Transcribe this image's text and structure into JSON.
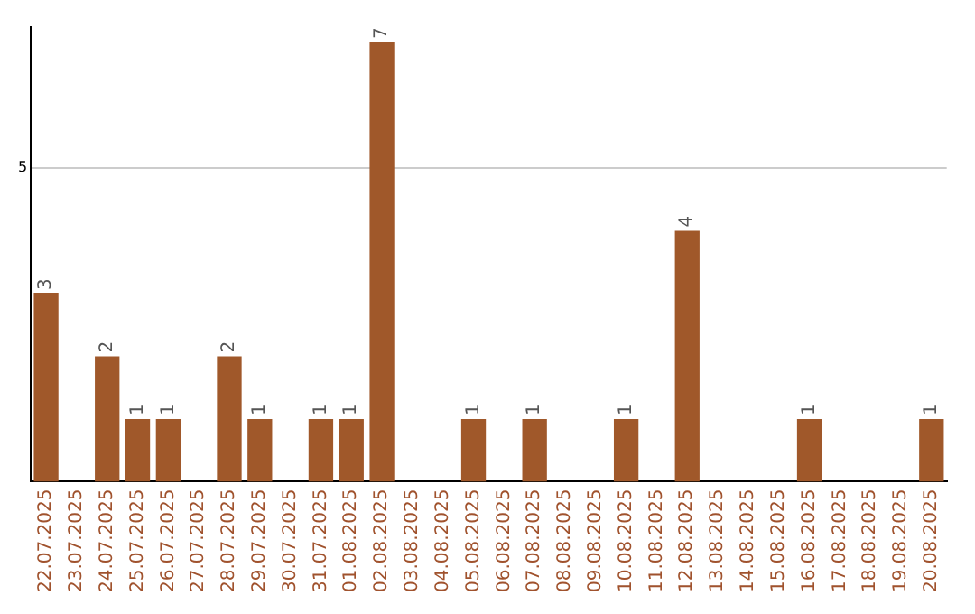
{
  "chart_data": {
    "type": "bar",
    "categories": [
      "22.07.2025",
      "23.07.2025",
      "24.07.2025",
      "25.07.2025",
      "26.07.2025",
      "27.07.2025",
      "28.07.2025",
      "29.07.2025",
      "30.07.2025",
      "31.07.2025",
      "01.08.2025",
      "02.08.2025",
      "03.08.2025",
      "04.08.2025",
      "05.08.2025",
      "06.08.2025",
      "07.08.2025",
      "08.08.2025",
      "09.08.2025",
      "10.08.2025",
      "11.08.2025",
      "12.08.2025",
      "13.08.2025",
      "14.08.2025",
      "15.08.2025",
      "16.08.2025",
      "17.08.2025",
      "18.08.2025",
      "19.08.2025",
      "20.08.2025"
    ],
    "values": [
      3,
      0,
      2,
      1,
      1,
      0,
      2,
      1,
      0,
      1,
      1,
      7,
      0,
      0,
      1,
      0,
      1,
      0,
      0,
      1,
      0,
      4,
      0,
      0,
      0,
      1,
      0,
      0,
      0,
      1
    ],
    "value_labels": [
      "3",
      null,
      "2",
      "1",
      "1",
      null,
      "2",
      "1",
      null,
      "1",
      "1",
      "7",
      null,
      null,
      "1",
      null,
      "1",
      null,
      null,
      "1",
      null,
      "4",
      null,
      null,
      null,
      "1",
      null,
      null,
      null,
      "1"
    ],
    "color": "#a0582a",
    "ylim": [
      0,
      7.25
    ],
    "yticks": [
      5
    ],
    "grid": "y",
    "legend": false
  }
}
